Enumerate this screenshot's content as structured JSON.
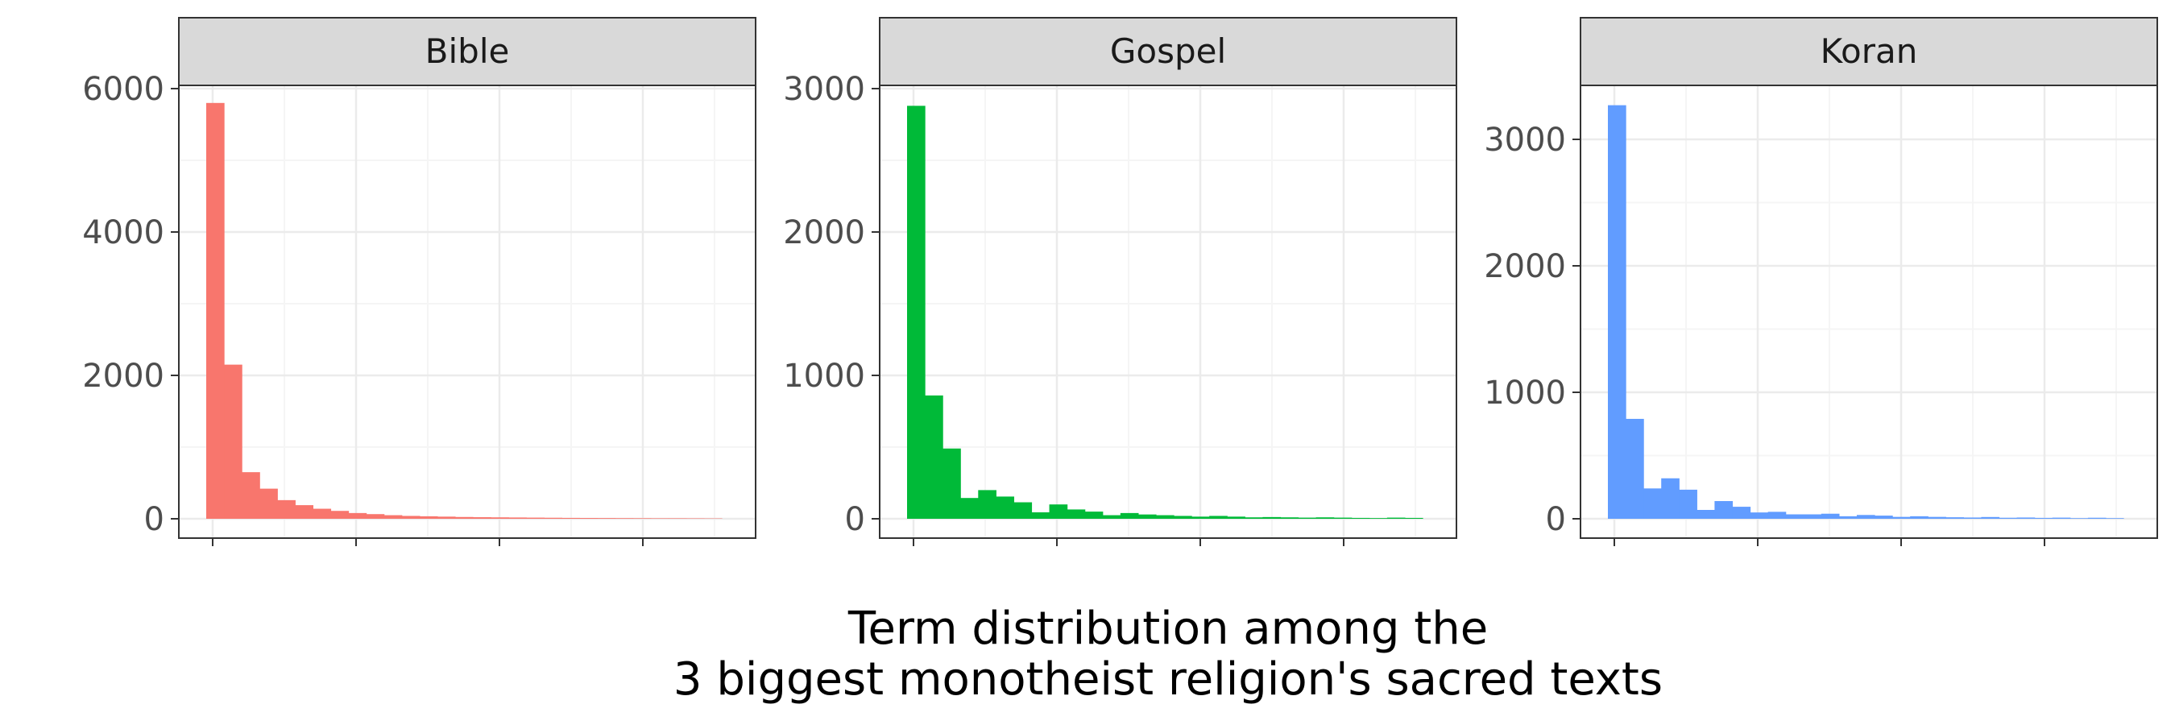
{
  "chart_data": [
    {
      "type": "bar",
      "title": "Bible",
      "color": "#F8766D",
      "ylim": [
        0,
        6000
      ],
      "yticks": [
        0,
        2000,
        4000,
        6000
      ],
      "values": [
        5800,
        2150,
        650,
        420,
        260,
        190,
        140,
        110,
        80,
        65,
        50,
        40,
        35,
        30,
        25,
        22,
        20,
        18,
        16,
        14,
        12,
        11,
        10,
        9,
        8,
        7,
        7,
        6,
        5
      ]
    },
    {
      "type": "bar",
      "title": "Gospel",
      "color": "#00BA38",
      "ylim": [
        0,
        3000
      ],
      "yticks": [
        0,
        1000,
        2000,
        3000
      ],
      "values": [
        2880,
        860,
        490,
        145,
        200,
        155,
        115,
        45,
        100,
        65,
        50,
        25,
        40,
        30,
        25,
        20,
        15,
        20,
        15,
        10,
        12,
        10,
        8,
        10,
        8,
        6,
        5,
        8,
        6
      ]
    },
    {
      "type": "bar",
      "title": "Koran",
      "color": "#619CFF",
      "ylim": [
        0,
        3000
      ],
      "yticks": [
        0,
        1000,
        2000,
        3000
      ],
      "values": [
        3270,
        790,
        240,
        320,
        230,
        70,
        140,
        95,
        50,
        55,
        35,
        35,
        40,
        20,
        30,
        25,
        15,
        20,
        15,
        12,
        10,
        14,
        8,
        10,
        7,
        9,
        5,
        8,
        5
      ]
    }
  ],
  "caption": {
    "line1": "Term distribution among the",
    "line2": "3 biggest monotheist religion's sacred texts"
  },
  "style": {
    "panel_border": "#333333",
    "strip_fill": "#d9d9d9",
    "grid_major": "#ebebeb",
    "grid_minor": "#f5f5f5",
    "tick_color": "#333333"
  }
}
